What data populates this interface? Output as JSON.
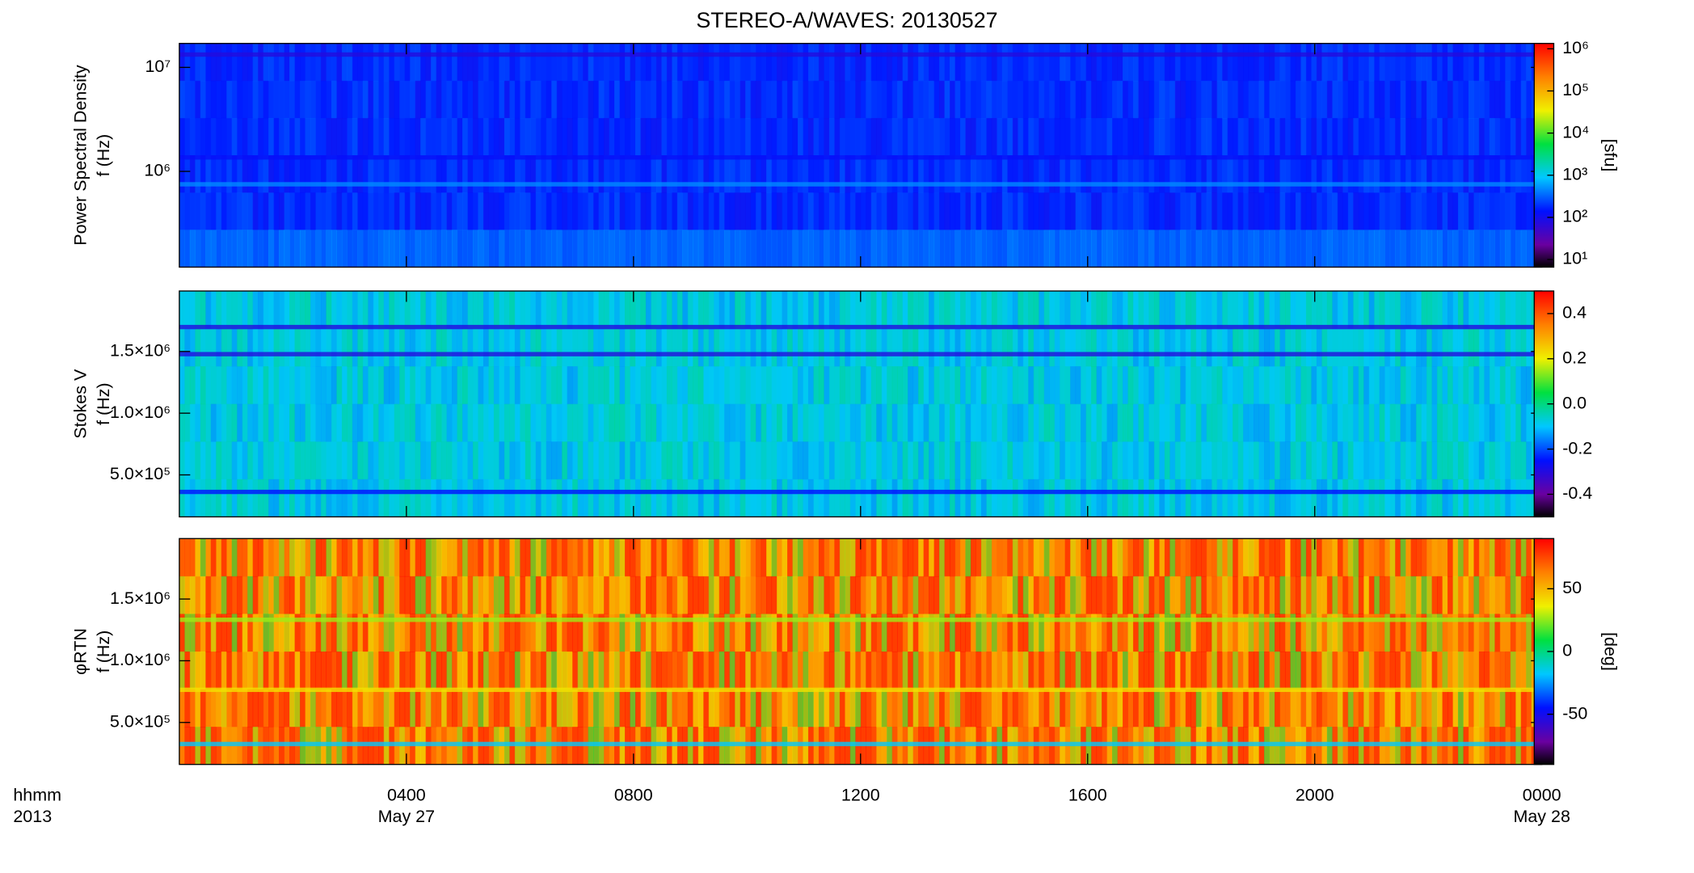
{
  "title": "STEREO-A/WAVES: 20130527",
  "x_axis": {
    "xlim": [
      0,
      24
    ],
    "xticks": [
      {
        "value": 4,
        "label": "0400"
      },
      {
        "value": 8,
        "label": "0800"
      },
      {
        "value": 12,
        "label": "1200"
      },
      {
        "value": 16,
        "label": "1600"
      },
      {
        "value": 20,
        "label": "2000"
      },
      {
        "value": 24,
        "label": "0000"
      }
    ],
    "date_labels": [
      {
        "value": 4,
        "label": "May 27"
      },
      {
        "value": 24,
        "label": "May 28"
      }
    ],
    "unit_label": "hhmm",
    "year_label": "2013"
  },
  "chart_data": [
    {
      "type": "heatmap",
      "ylabel": [
        "Power Spectral Density",
        "f (Hz)"
      ],
      "log_y": true,
      "ylim": [
        120000,
        17000000
      ],
      "yticks": [
        {
          "value": 1000000,
          "label": "10⁶"
        },
        {
          "value": 10000000,
          "label": "10⁷"
        }
      ],
      "colorbar": {
        "log": true,
        "lim": [
          6.6,
          1340000
        ],
        "label": "[sfu]",
        "ticks": [
          {
            "value": 10,
            "label": "10¹"
          },
          {
            "value": 100,
            "label": "10²"
          },
          {
            "value": 1000,
            "label": "10³"
          },
          {
            "value": 10000,
            "label": "10⁴"
          },
          {
            "value": 100000,
            "label": "10⁵"
          },
          {
            "value": 1000000,
            "label": "10⁶"
          }
        ]
      }
    },
    {
      "type": "heatmap",
      "ylabel": [
        "Stokes V",
        "f (Hz)"
      ],
      "log_y": false,
      "ylim": [
        160000,
        1990000
      ],
      "yticks": [
        {
          "value": 500000,
          "label": "5.0×10⁵"
        },
        {
          "value": 1000000,
          "label": "1.0×10⁶"
        },
        {
          "value": 1500000,
          "label": "1.5×10⁶"
        }
      ],
      "colorbar": {
        "log": false,
        "lim": [
          -0.5,
          0.5
        ],
        "ticks": [
          {
            "value": -0.4,
            "label": "-0.4"
          },
          {
            "value": -0.2,
            "label": "-0.2"
          },
          {
            "value": 0,
            "label": "0.0"
          },
          {
            "value": 0.2,
            "label": "0.2"
          },
          {
            "value": 0.4,
            "label": "0.4"
          }
        ]
      }
    },
    {
      "type": "heatmap",
      "ylabel": [
        "φRTN",
        "f (Hz)"
      ],
      "log_y": false,
      "ylim": [
        160000,
        1990000
      ],
      "yticks": [
        {
          "value": 500000,
          "label": "5.0×10⁵"
        },
        {
          "value": 1000000,
          "label": "1.0×10⁶"
        },
        {
          "value": 1500000,
          "label": "1.5×10⁶"
        }
      ],
      "colorbar": {
        "log": false,
        "lim": [
          -90,
          90
        ],
        "label": "[deg]",
        "ticks": [
          {
            "value": -50,
            "label": "-50"
          },
          {
            "value": 0,
            "label": "0"
          },
          {
            "value": 50,
            "label": "50"
          }
        ]
      }
    }
  ]
}
